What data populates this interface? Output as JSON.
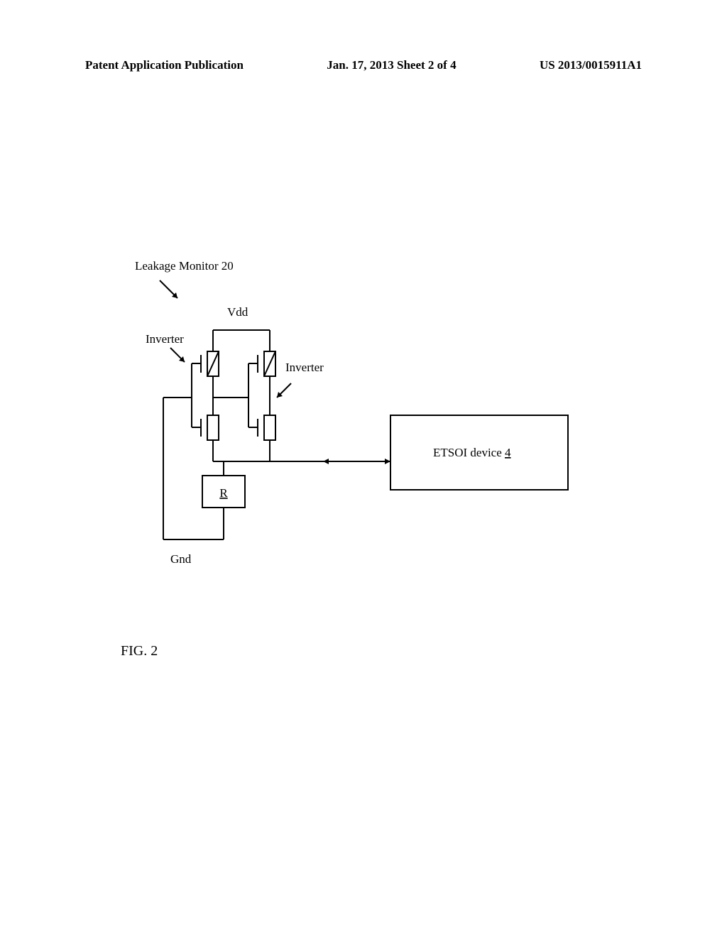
{
  "header": {
    "left": "Patent Application Publication",
    "center": "Jan. 17, 2013  Sheet 2 of 4",
    "right": "US 2013/0015911A1"
  },
  "diagram": {
    "title": "Leakage Monitor 20",
    "vdd_label": "Vdd",
    "gnd_label": "Gnd",
    "inverter_left_label": "Inverter",
    "inverter_right_label": "Inverter",
    "resistor_label": "R",
    "device_label": "ETSOI device",
    "device_ref": "4",
    "figure_label": "FIG. 2",
    "colors": {
      "line": "#000000",
      "bg": "#ffffff"
    },
    "stroke_width": 2
  }
}
